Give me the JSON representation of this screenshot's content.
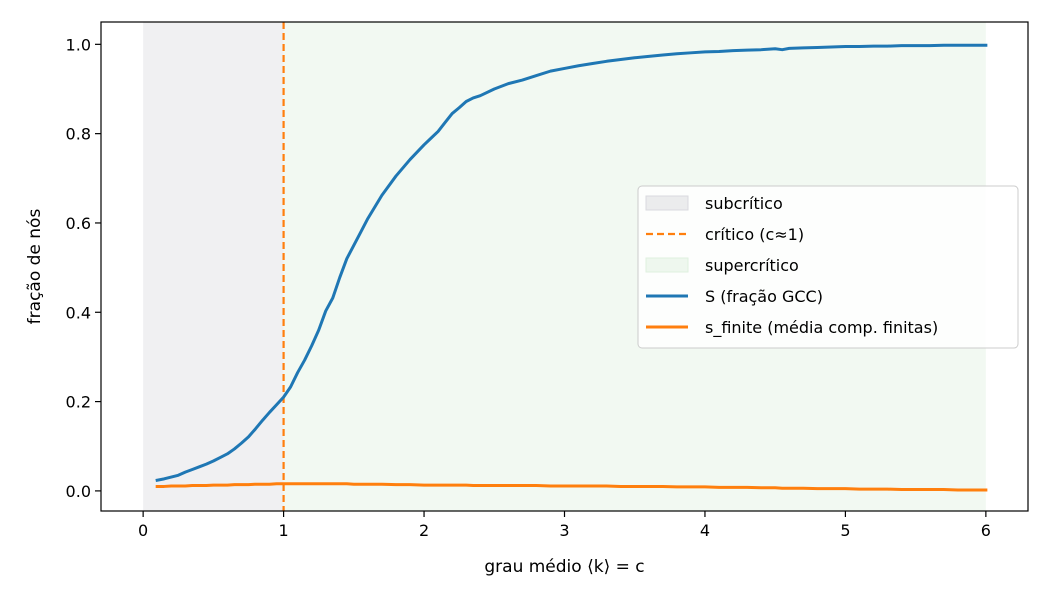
{
  "chart_data": {
    "type": "line",
    "title": "",
    "xlabel": "grau médio ⟨k⟩ = c",
    "ylabel": "fração de nós",
    "xlim": [
      -0.3,
      6.3
    ],
    "ylim": [
      -0.045,
      1.05
    ],
    "xticks": [
      0,
      1,
      2,
      3,
      4,
      5,
      6
    ],
    "xtick_labels": [
      "0",
      "1",
      "2",
      "3",
      "4",
      "5",
      "6"
    ],
    "yticks": [
      0.0,
      0.2,
      0.4,
      0.6,
      0.8,
      1.0
    ],
    "ytick_labels": [
      "0.0",
      "0.2",
      "0.4",
      "0.6",
      "0.8",
      "1.0"
    ],
    "grid": false,
    "legend_position": "center-right",
    "regions": [
      {
        "name": "subcrítico",
        "x_start": 0,
        "x_end": 1,
        "color": "#d9d9de"
      },
      {
        "name": "supercrítico",
        "x_start": 1,
        "x_end": 6,
        "color": "#dff0df"
      }
    ],
    "vline": {
      "name": "crítico (c≈1)",
      "x": 1,
      "color": "#ff7f0e",
      "style": "dashed"
    },
    "x": [
      0.1,
      0.15,
      0.2,
      0.25,
      0.3,
      0.35,
      0.4,
      0.45,
      0.5,
      0.55,
      0.6,
      0.65,
      0.7,
      0.75,
      0.8,
      0.85,
      0.9,
      0.95,
      1.0,
      1.05,
      1.1,
      1.15,
      1.2,
      1.25,
      1.3,
      1.35,
      1.4,
      1.45,
      1.5,
      1.55,
      1.6,
      1.7,
      1.8,
      1.9,
      2.0,
      2.05,
      2.1,
      2.15,
      2.2,
      2.25,
      2.3,
      2.35,
      2.4,
      2.5,
      2.6,
      2.7,
      2.8,
      2.9,
      3.0,
      3.1,
      3.2,
      3.3,
      3.4,
      3.5,
      3.6,
      3.7,
      3.8,
      3.9,
      4.0,
      4.1,
      4.2,
      4.3,
      4.4,
      4.5,
      4.55,
      4.6,
      4.7,
      4.8,
      4.9,
      5.0,
      5.1,
      5.2,
      5.3,
      5.4,
      5.5,
      5.6,
      5.7,
      5.8,
      5.9,
      6.0
    ],
    "series": [
      {
        "name": "S (fração GCC)",
        "color": "#1f77b4",
        "values": [
          0.024,
          0.027,
          0.031,
          0.035,
          0.042,
          0.048,
          0.054,
          0.06,
          0.067,
          0.075,
          0.083,
          0.094,
          0.107,
          0.121,
          0.139,
          0.158,
          0.176,
          0.193,
          0.21,
          0.233,
          0.265,
          0.293,
          0.325,
          0.36,
          0.403,
          0.432,
          0.478,
          0.52,
          0.55,
          0.58,
          0.61,
          0.662,
          0.705,
          0.742,
          0.775,
          0.79,
          0.805,
          0.825,
          0.845,
          0.858,
          0.872,
          0.88,
          0.885,
          0.9,
          0.912,
          0.92,
          0.93,
          0.94,
          0.946,
          0.952,
          0.957,
          0.962,
          0.966,
          0.97,
          0.973,
          0.976,
          0.979,
          0.981,
          0.983,
          0.984,
          0.986,
          0.987,
          0.988,
          0.99,
          0.988,
          0.991,
          0.992,
          0.993,
          0.994,
          0.995,
          0.995,
          0.996,
          0.996,
          0.997,
          0.997,
          0.997,
          0.998,
          0.998,
          0.998,
          0.998
        ]
      },
      {
        "name": "s_finite (média comp. finitas)",
        "color": "#ff7f0e",
        "values": [
          0.01,
          0.01,
          0.011,
          0.011,
          0.011,
          0.012,
          0.012,
          0.012,
          0.013,
          0.013,
          0.013,
          0.014,
          0.014,
          0.014,
          0.015,
          0.015,
          0.015,
          0.016,
          0.016,
          0.016,
          0.016,
          0.016,
          0.016,
          0.016,
          0.016,
          0.016,
          0.016,
          0.016,
          0.015,
          0.015,
          0.015,
          0.015,
          0.014,
          0.014,
          0.013,
          0.013,
          0.013,
          0.013,
          0.013,
          0.013,
          0.013,
          0.012,
          0.012,
          0.012,
          0.012,
          0.012,
          0.012,
          0.011,
          0.011,
          0.011,
          0.011,
          0.011,
          0.01,
          0.01,
          0.01,
          0.01,
          0.009,
          0.009,
          0.009,
          0.008,
          0.008,
          0.008,
          0.007,
          0.007,
          0.006,
          0.006,
          0.006,
          0.005,
          0.005,
          0.005,
          0.004,
          0.004,
          0.004,
          0.003,
          0.003,
          0.003,
          0.003,
          0.002,
          0.002,
          0.002
        ]
      }
    ]
  }
}
